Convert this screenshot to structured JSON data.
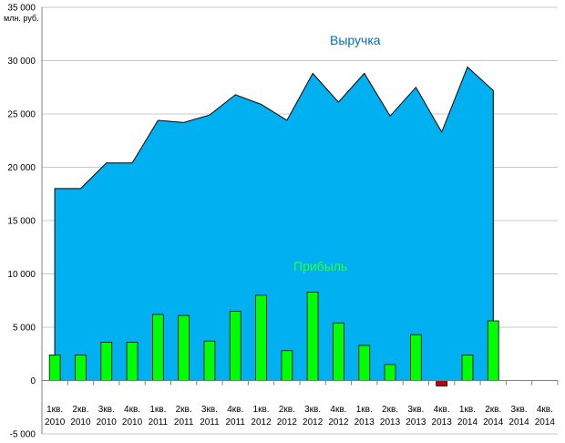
{
  "chart_data": {
    "type": "area",
    "unit_label": "млн. руб.",
    "categories": [
      [
        "1кв.",
        "2010"
      ],
      [
        "2кв.",
        "2010"
      ],
      [
        "3кв.",
        "2010"
      ],
      [
        "4кв.",
        "2010"
      ],
      [
        "1кв.",
        "2011"
      ],
      [
        "2кв.",
        "2011"
      ],
      [
        "3кв.",
        "2011"
      ],
      [
        "4кв.",
        "2011"
      ],
      [
        "1кв.",
        "2012"
      ],
      [
        "2кв.",
        "2012"
      ],
      [
        "3кв.",
        "2012"
      ],
      [
        "4кв.",
        "2012"
      ],
      [
        "1кв.",
        "2013"
      ],
      [
        "2кв.",
        "2013"
      ],
      [
        "3кв.",
        "2013"
      ],
      [
        "4кв.",
        "2013"
      ],
      [
        "1кв.",
        "2014"
      ],
      [
        "2кв.",
        "2014"
      ],
      [
        "3кв.",
        "2014"
      ],
      [
        "4кв.",
        "2014"
      ]
    ],
    "ylim": [
      -5000,
      35000
    ],
    "yticks": [
      {
        "value": -5000,
        "label": "-5 000"
      },
      {
        "value": 0,
        "label": "0"
      },
      {
        "value": 5000,
        "label": "5 000"
      },
      {
        "value": 10000,
        "label": "10 000"
      },
      {
        "value": 15000,
        "label": "15 000"
      },
      {
        "value": 20000,
        "label": "20 000"
      },
      {
        "value": 25000,
        "label": "25 000"
      },
      {
        "value": 30000,
        "label": "30 000"
      },
      {
        "value": 35000,
        "label": "35 000"
      }
    ],
    "grid": true,
    "series": [
      {
        "name": "Выручка",
        "type": "area",
        "color": "#00b0f0",
        "label_color": "#0070c0",
        "values": [
          18000,
          18000,
          20400,
          20400,
          24400,
          24200,
          24900,
          26800,
          25900,
          24400,
          28800,
          26100,
          28800,
          24800,
          27500,
          23300,
          29400,
          27200,
          null,
          null
        ]
      },
      {
        "name": "Прибыль",
        "type": "bar",
        "color": "#00ff00",
        "negative_color": "#c00000",
        "label_color": "#33ff33",
        "values": [
          2400,
          2400,
          3600,
          3600,
          6200,
          6100,
          3700,
          6500,
          8000,
          2800,
          8300,
          5400,
          3300,
          1500,
          4300,
          -500,
          2400,
          5600,
          null,
          null
        ]
      }
    ]
  }
}
